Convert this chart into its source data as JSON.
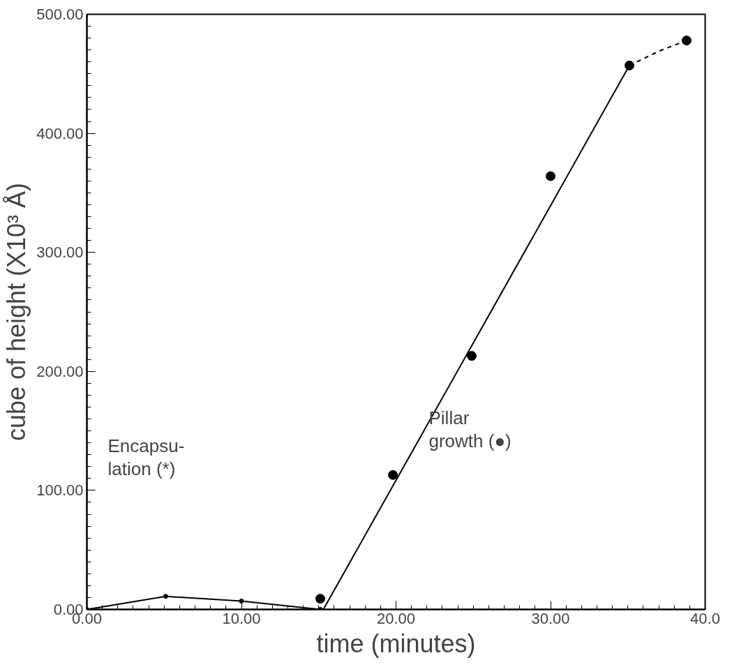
{
  "chart_data": {
    "type": "line",
    "xlabel": "time (minutes)",
    "ylabel": "cube of height (X10³ Å)",
    "xlim": [
      0,
      40
    ],
    "ylim": [
      0,
      500
    ],
    "xticks": [
      {
        "value": 0,
        "label": "0.00"
      },
      {
        "value": 10,
        "label": "10.00"
      },
      {
        "value": 20,
        "label": "20.00"
      },
      {
        "value": 30,
        "label": "30.00"
      },
      {
        "value": 40,
        "label": "40.0"
      }
    ],
    "yticks": [
      {
        "value": 0,
        "label": "0.00"
      },
      {
        "value": 100,
        "label": "100.00"
      },
      {
        "value": 200,
        "label": "200.00"
      },
      {
        "value": 300,
        "label": "300.00"
      },
      {
        "value": 400,
        "label": "400.00"
      },
      {
        "value": 500,
        "label": "500.00"
      }
    ],
    "series": [
      {
        "color": "#000000",
        "marker": "circle",
        "line_style": "solid",
        "x": [
          0,
          5.1,
          10.0,
          15.1
        ],
        "values": [
          0,
          11,
          7,
          0
        ]
      },
      {
        "type": "scatter",
        "color": "#000000",
        "marker": "circle",
        "x": [
          15.1,
          19.8,
          24.9,
          30.0,
          35.1,
          38.8
        ],
        "values": [
          9,
          113,
          213,
          364,
          457,
          478
        ]
      },
      {
        "type": "line",
        "color": "#000000",
        "marker": "none",
        "line_style": "solid",
        "x": [
          15.3,
          35.1
        ],
        "values": [
          0,
          457
        ]
      },
      {
        "type": "line",
        "color": "#000000",
        "marker": "none",
        "line_style": "dashed",
        "x": [
          35.1,
          37.0,
          38.8
        ],
        "values": [
          457,
          469,
          478
        ]
      }
    ],
    "annotations": [
      "Encapsu-\nlation (*)",
      "Pillar\ngrowth  (●)"
    ]
  }
}
